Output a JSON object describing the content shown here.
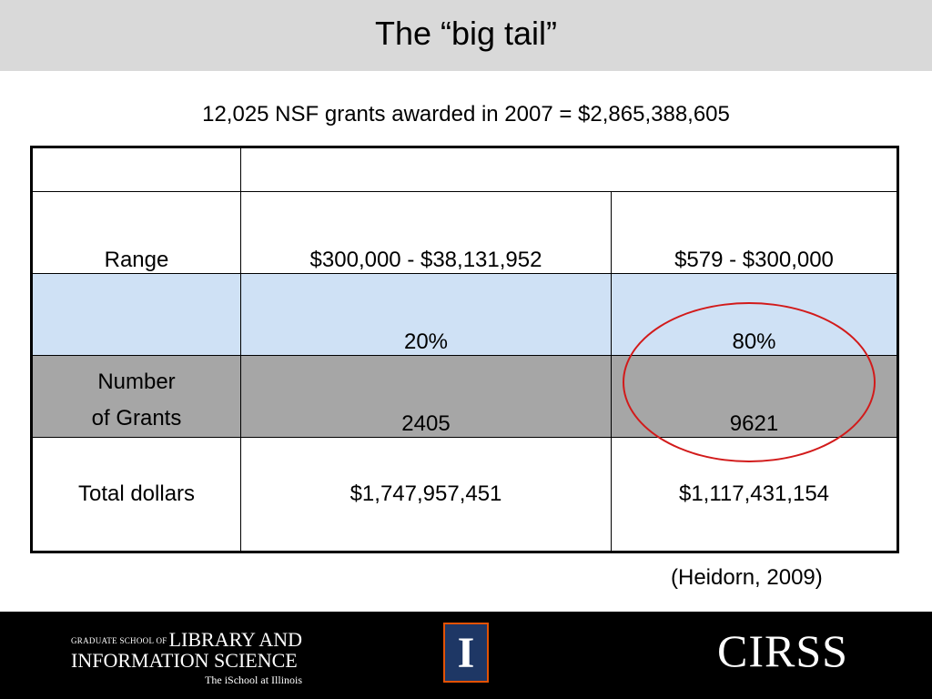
{
  "slide": {
    "title": "The “big tail”",
    "subtitle": "12,025 NSF grants awarded in 2007 = $2,865,388,605",
    "citation": "(Heidorn, 2009)"
  },
  "table": {
    "rows": [
      {
        "label": "Range",
        "col1": "$300,000 - $38,131,952",
        "col2": "$579 - $300,000"
      },
      {
        "label": "",
        "col1": "20%",
        "col2": "80%"
      },
      {
        "label_line1": "Number",
        "label_line2": "of Grants",
        "col1": "2405",
        "col2": "9621"
      },
      {
        "label": "Total dollars",
        "col1": "$1,747,957,451",
        "col2": "$1,117,431,154"
      }
    ],
    "highlight_color": "#d21a1a"
  },
  "footer": {
    "logo_left": {
      "small": "GRADUATE SCHOOL OF",
      "line1": "LIBRARY AND",
      "line2": "INFORMATION SCIENCE",
      "line3": "The iSchool at Illinois"
    },
    "logo_center_icon": "illinois-block-i-icon",
    "logo_right": "CIRSS"
  }
}
